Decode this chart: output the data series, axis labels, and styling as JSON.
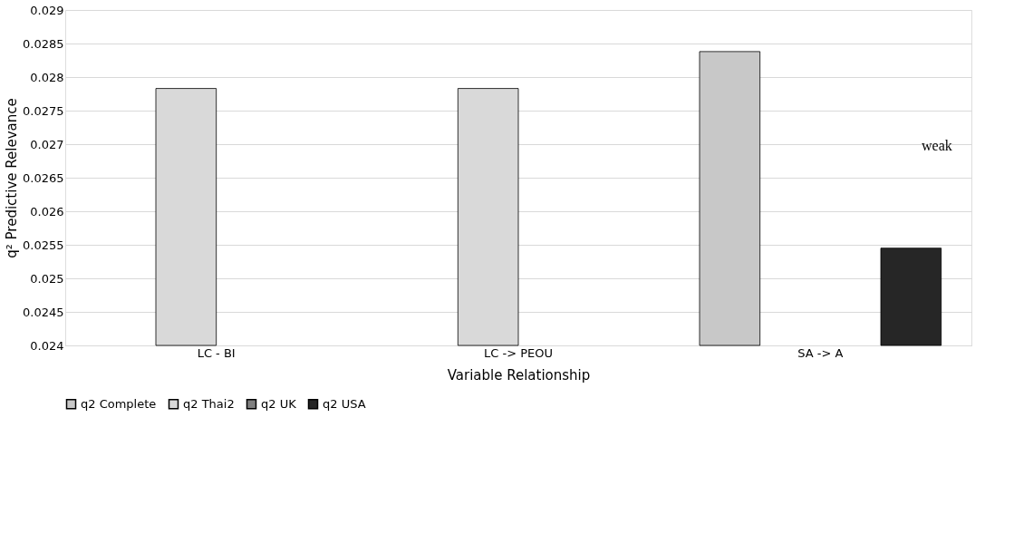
{
  "chart_data": {
    "type": "bar",
    "xlabel": "Variable Relationship",
    "ylabel": "q² Predictive Relevance",
    "categories": [
      "LC - BI",
      "LC -> PEOU",
      "SA -> A"
    ],
    "series": [
      {
        "name": "q2 Complete",
        "color": "#c8c8c8",
        "values": [
          null,
          null,
          0.02838
        ]
      },
      {
        "name": "q2 Thai2",
        "color": "#d9d9d9",
        "values": [
          0.02783,
          0.02783,
          null
        ]
      },
      {
        "name": "q2 UK",
        "color": "#7f7f7f",
        "values": [
          null,
          null,
          null
        ]
      },
      {
        "name": "q2 USA",
        "color": "#262626",
        "values": [
          null,
          null,
          0.02545
        ]
      }
    ],
    "ylim": [
      0.024,
      0.029
    ],
    "yticks": [
      0.024,
      0.0245,
      0.025,
      0.0255,
      0.026,
      0.0265,
      0.027,
      0.0275,
      0.028,
      0.0285,
      0.029
    ],
    "grid": "y",
    "legend": "bottom",
    "annotations": [
      "weak"
    ]
  }
}
